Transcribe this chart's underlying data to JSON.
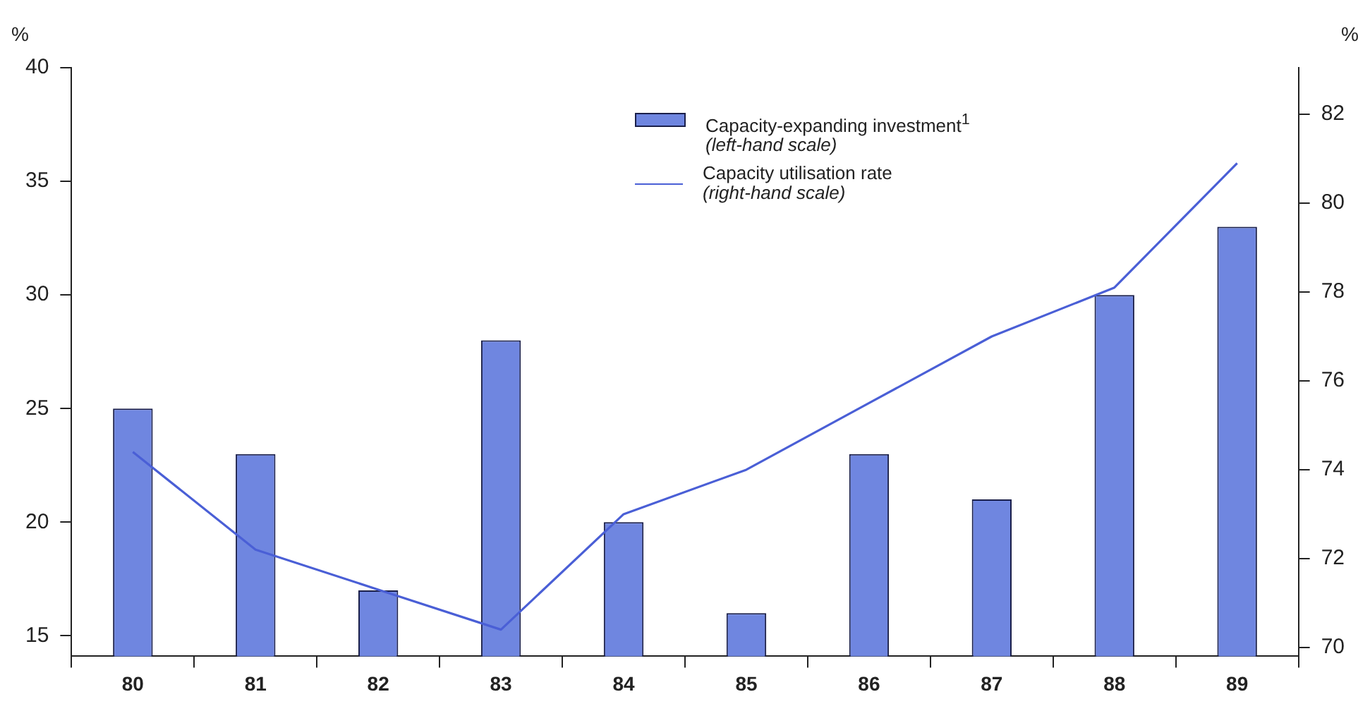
{
  "chart_data": {
    "type": "bar",
    "ylabel": "%",
    "y2label": "%",
    "categories": [
      "80",
      "81",
      "82",
      "83",
      "84",
      "85",
      "86",
      "87",
      "88",
      "89"
    ],
    "series": [
      {
        "name": "Capacity-expanding investment$^{1}$ (left-hand scale)",
        "color": "#6f86e0",
        "values": [
          25,
          23,
          17,
          28,
          20,
          16,
          23,
          21,
          30,
          33
        ]
      },
      {
        "name": "Capacity utilisation rate (right-hand scale)",
        "type": "line",
        "axis": "y2",
        "color": "#4a5fd6",
        "values": [
          74.4,
          72.2,
          71.3,
          70.4,
          73.0,
          74.0,
          75.5,
          77.0,
          78.1,
          80.9
        ]
      }
    ],
    "ylim": [
      14.1,
      40
    ],
    "yticks": [
      15,
      20,
      25,
      30,
      35,
      40
    ],
    "y2lim": [
      69.8,
      83.05
    ],
    "y2ticks": [
      70,
      72,
      74,
      76,
      78,
      80,
      82
    ],
    "grid": false,
    "legend": "top right",
    "marker": "none",
    "line_style": "solid"
  }
}
